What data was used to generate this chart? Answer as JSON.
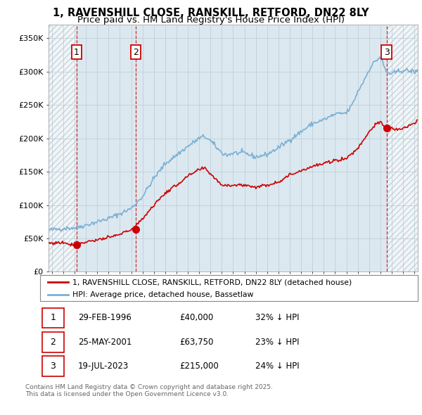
{
  "title1": "1, RAVENSHILL CLOSE, RANSKILL, RETFORD, DN22 8LY",
  "title2": "Price paid vs. HM Land Registry's House Price Index (HPI)",
  "ylim": [
    0,
    370000
  ],
  "yticks": [
    0,
    50000,
    100000,
    150000,
    200000,
    250000,
    300000,
    350000
  ],
  "ytick_labels": [
    "£0",
    "£50K",
    "£100K",
    "£150K",
    "£200K",
    "£250K",
    "£300K",
    "£350K"
  ],
  "xlim_start": 1993.7,
  "xlim_end": 2026.3,
  "sale_dates": [
    1996.16,
    2001.4,
    2023.54
  ],
  "sale_prices": [
    40000,
    63750,
    215000
  ],
  "sale_labels": [
    "1",
    "2",
    "3"
  ],
  "legend_property": "1, RAVENSHILL CLOSE, RANSKILL, RETFORD, DN22 8LY (detached house)",
  "legend_hpi": "HPI: Average price, detached house, Bassetlaw",
  "table_data": [
    [
      "1",
      "29-FEB-1996",
      "£40,000",
      "32% ↓ HPI"
    ],
    [
      "2",
      "25-MAY-2001",
      "£63,750",
      "23% ↓ HPI"
    ],
    [
      "3",
      "19-JUL-2023",
      "£215,000",
      "24% ↓ HPI"
    ]
  ],
  "footer": "Contains HM Land Registry data © Crown copyright and database right 2025.\nThis data is licensed under the Open Government Licence v3.0.",
  "hpi_color": "#7ab0d4",
  "property_color": "#cc0000",
  "chart_bg": "#dce8f0",
  "hatch_bg": "#c8d4dc",
  "grid_color": "#b8cad6"
}
